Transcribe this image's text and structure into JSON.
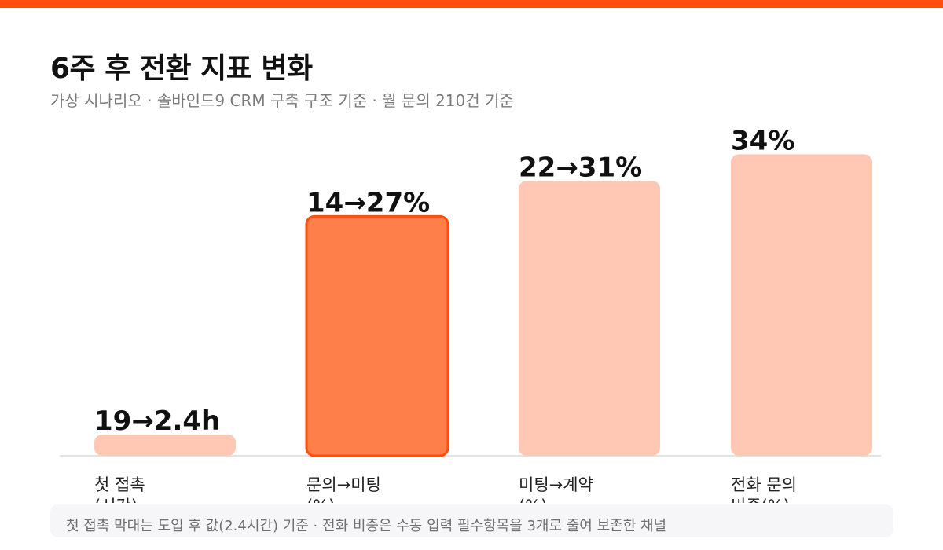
{
  "header": {
    "title": "6주 후 전환 지표 변화",
    "subtitle": "가상 시나리오 · 솔바인드9 CRM 구축 구조 기준 · 월 문의 210건 기준"
  },
  "colors": {
    "accent": "#ff4f0a",
    "bar_default": "#ffc8b4",
    "bar_highlight": "#ff7f4a",
    "bar_highlight_border": "#ff4f0a"
  },
  "chart_data": {
    "type": "bar",
    "title": "6주 후 전환 지표 변화",
    "categories": [
      {
        "line1": "첫 접촉",
        "line2": "(시간)"
      },
      {
        "line1": "문의→미팅",
        "line2": "(%)"
      },
      {
        "line1": "미팅→계약",
        "line2": "(%)"
      },
      {
        "line1": "전화 문의",
        "line2": "비중(%)"
      }
    ],
    "data_labels": [
      "19→2.4h",
      "14→27%",
      "22→31%",
      "34%"
    ],
    "values": [
      2.4,
      27,
      31,
      34
    ],
    "highlight_index": 1,
    "ylim": [
      0,
      39
    ],
    "grid": false,
    "legend": "none"
  },
  "footnote": "첫 접촉 막대는 도입 후 값(2.4시간) 기준 · 전화 비중은 수동 입력 필수항목을 3개로 줄여 보존한 채널"
}
